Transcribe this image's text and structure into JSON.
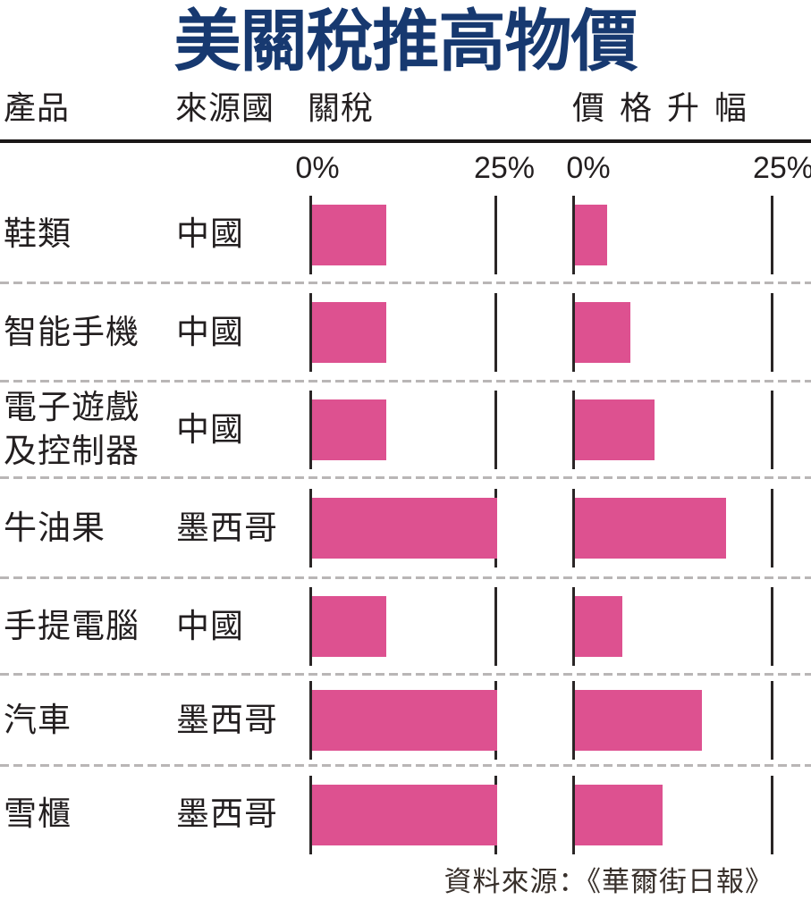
{
  "title": "美關稅推高物價",
  "headers": {
    "product": "產品",
    "country": "來源國",
    "tariff": "關稅",
    "price_increase": "價格升幅"
  },
  "axis": {
    "zero_label": "0%",
    "max_label": "25%"
  },
  "source_note": "資料來源：《華爾街日報》",
  "colors": {
    "bar": "#dd5190",
    "title": "#173970",
    "text": "#231f20",
    "line": "#2a2626",
    "dash": "#b9b6b6",
    "rule": "#1a1717"
  },
  "chart_data": {
    "type": "bar",
    "orientation": "horizontal",
    "unit": "%",
    "xlim": [
      0,
      25
    ],
    "tick_labels": [
      "0%",
      "25%"
    ],
    "grid": false,
    "categories": [
      "鞋類",
      "智能手機",
      "電子遊戲及控制器",
      "牛油果",
      "手提電腦",
      "汽車",
      "雪櫃"
    ],
    "categories_display": [
      "鞋類",
      "智能手機",
      "電子遊戲\n及控制器",
      "牛油果",
      "手提電腦",
      "汽車",
      "雪櫃"
    ],
    "countries": [
      "中國",
      "中國",
      "中國",
      "墨西哥",
      "中國",
      "墨西哥",
      "墨西哥"
    ],
    "series": [
      {
        "name": "關稅",
        "values": [
          10,
          10,
          10,
          25,
          10,
          25,
          25
        ]
      },
      {
        "name": "價格升幅",
        "values": [
          4,
          7,
          10,
          19,
          6,
          16,
          11
        ]
      }
    ]
  }
}
